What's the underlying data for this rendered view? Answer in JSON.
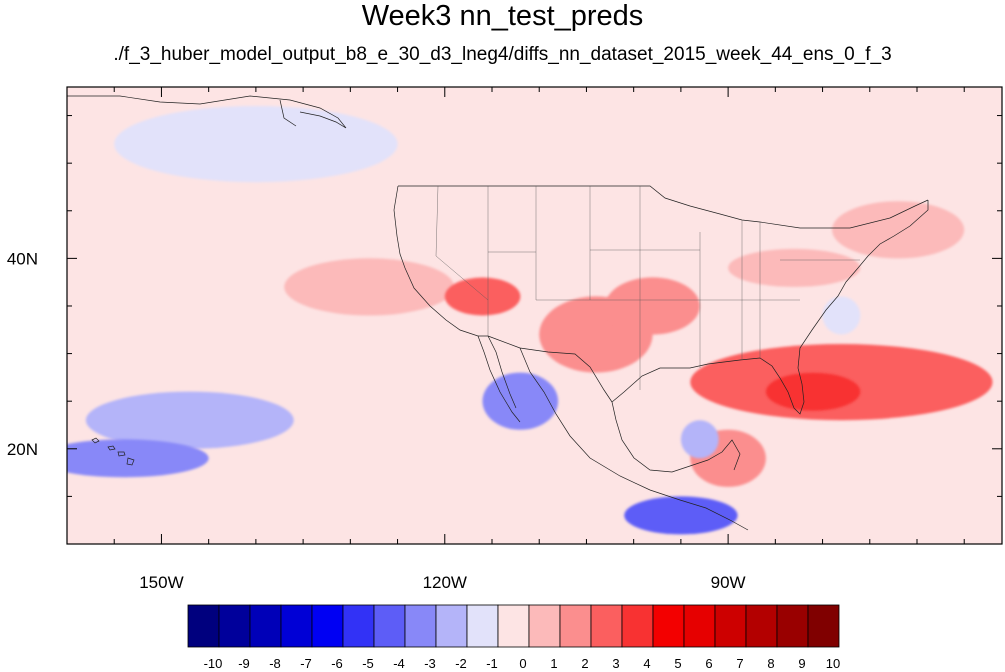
{
  "title": "Week3 nn_test_preds",
  "subtitle": "./f_3_huber_model_output_b8_e_30_d3_lneg4/diffs_nn_dataset_2015_week_44_ens_0_f_3",
  "map": {
    "projection": "cylindrical-equidistant",
    "lon_range": [
      -160,
      -61
    ],
    "lat_range": [
      10,
      58
    ],
    "x_tick_labels": [
      {
        "lon": -150,
        "label": "150W"
      },
      {
        "lon": -120,
        "label": "120W"
      },
      {
        "lon": -90,
        "label": "90W"
      }
    ],
    "y_tick_labels": [
      {
        "lat": 20,
        "label": "20N"
      },
      {
        "lat": 40,
        "label": "40N"
      }
    ],
    "background_color": "#fde4e4",
    "anomaly_regions": [
      {
        "sign": "positive",
        "level": 1,
        "lon": -128,
        "lat": 37,
        "rlon": 9,
        "rlat": 3
      },
      {
        "sign": "positive",
        "level": 3,
        "lon": -116,
        "lat": 36,
        "rlon": 4,
        "rlat": 2
      },
      {
        "sign": "positive",
        "level": 2,
        "lon": -104,
        "lat": 32,
        "rlon": 6,
        "rlat": 4
      },
      {
        "sign": "positive",
        "level": 2,
        "lon": -98,
        "lat": 35,
        "rlon": 5,
        "rlat": 3
      },
      {
        "sign": "positive",
        "level": 1,
        "lon": -83,
        "lat": 39,
        "rlon": 7,
        "rlat": 2
      },
      {
        "sign": "positive",
        "level": 1,
        "lon": -72,
        "lat": 43,
        "rlon": 7,
        "rlat": 3
      },
      {
        "sign": "positive",
        "level": 3,
        "lon": -78,
        "lat": 27,
        "rlon": 16,
        "rlat": 4
      },
      {
        "sign": "positive",
        "level": 4,
        "lon": -81,
        "lat": 26,
        "rlon": 5,
        "rlat": 2
      },
      {
        "sign": "positive",
        "level": 2,
        "lon": -90,
        "lat": 19,
        "rlon": 4,
        "rlat": 3
      },
      {
        "sign": "negative",
        "level": -1,
        "lon": -140,
        "lat": 52,
        "rlon": 15,
        "rlat": 4
      },
      {
        "sign": "negative",
        "level": -2,
        "lon": -147,
        "lat": 23,
        "rlon": 11,
        "rlat": 3
      },
      {
        "sign": "negative",
        "level": -3,
        "lon": -154,
        "lat": 19,
        "rlon": 9,
        "rlat": 2
      },
      {
        "sign": "negative",
        "level": -3,
        "lon": -112,
        "lat": 25,
        "rlon": 4,
        "rlat": 3
      },
      {
        "sign": "negative",
        "level": -4,
        "lon": -95,
        "lat": 13,
        "rlon": 6,
        "rlat": 2
      },
      {
        "sign": "negative",
        "level": -2,
        "lon": -93,
        "lat": 21,
        "rlon": 2,
        "rlat": 2
      },
      {
        "sign": "negative",
        "level": -1,
        "lon": -78,
        "lat": 34,
        "rlon": 2,
        "rlat": 2
      }
    ]
  },
  "colorbar": {
    "levels": [
      "-10",
      "-9",
      "-8",
      "-7",
      "-6",
      "-5",
      "-4",
      "-3",
      "-2",
      "-1",
      "0",
      "1",
      "2",
      "3",
      "4",
      "5",
      "6",
      "7",
      "8",
      "9",
      "10"
    ],
    "colors": [
      "#00007e",
      "#00009b",
      "#0000b8",
      "#0000d6",
      "#0000f3",
      "#3232f6",
      "#5d5df7",
      "#8888f8",
      "#b4b4f9",
      "#e2e2fa",
      "#fde4e4",
      "#fcbaba",
      "#fb8e8e",
      "#fb5f5f",
      "#f83232",
      "#f30000",
      "#e60000",
      "#cd0000",
      "#b30000",
      "#990000",
      "#800000"
    ]
  }
}
